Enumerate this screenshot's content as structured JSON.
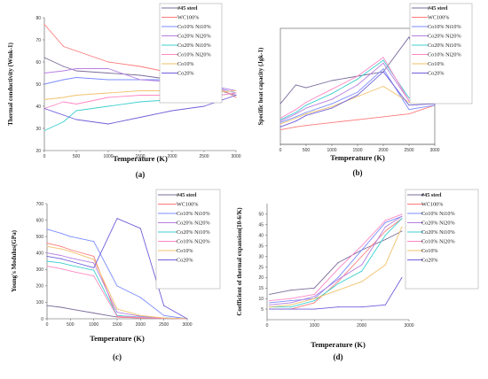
{
  "series_colors": [
    "#7a6b9a",
    "#ff7b7b",
    "#7b8cff",
    "#b77fe0",
    "#3fcfcf",
    "#ff88c4",
    "#f0c26e",
    "#6f5fd9",
    "#c88a78"
  ],
  "chart_data": [
    {
      "type": "line",
      "panel": "(a)",
      "xlabel": "Temperature (K)",
      "ylabel": "Thermal conductivity (Wmk-1)",
      "xlim": [
        0,
        3000
      ],
      "ylim": [
        20,
        80
      ],
      "xticks": [
        0,
        500,
        1000,
        1500,
        2000,
        2500,
        3000
      ],
      "yticks": [
        20,
        30,
        40,
        50,
        60,
        70,
        80
      ],
      "legend_position": "right",
      "x": [
        0,
        300,
        500,
        1000,
        1500,
        2000,
        2500,
        3000
      ],
      "series": [
        {
          "name": "#45 steel",
          "bold": true,
          "values": [
            62,
            58,
            56,
            55,
            54,
            52,
            49,
            45
          ]
        },
        {
          "name": "WC100%",
          "values": [
            77,
            67,
            65,
            60,
            58,
            55,
            52,
            44
          ]
        },
        {
          "name": "Co10% Ni10%",
          "values": [
            50,
            52,
            53,
            52,
            52,
            52,
            50,
            46
          ]
        },
        {
          "name": "Co20% Ni20%",
          "values": [
            55,
            56,
            57,
            57,
            52,
            51,
            50,
            47
          ]
        },
        {
          "name": "Co20% Ni10%",
          "values": [
            29,
            33,
            38,
            40,
            42,
            43,
            44,
            46
          ]
        },
        {
          "name": "Co10% Ni20%",
          "values": [
            39,
            42,
            41,
            44,
            45,
            45,
            44,
            46
          ]
        },
        {
          "name": "Co10%",
          "values": [
            43,
            44,
            45,
            46,
            47,
            47,
            46,
            47
          ]
        },
        {
          "name": "Co20%",
          "values": [
            39,
            36,
            34,
            32,
            35,
            38,
            40,
            45
          ]
        }
      ]
    },
    {
      "type": "line",
      "panel": "(b)",
      "xlabel": "Temperature (K)",
      "ylabel": "Specific heat capacity (Jgk-1)",
      "xlim": [
        0,
        3000
      ],
      "ylim": [
        0,
        0.8
      ],
      "xticks": [
        0,
        500,
        1000,
        1500,
        2000,
        2500,
        3000
      ],
      "yticks": [],
      "legend_position": "top-right",
      "x": [
        0,
        300,
        500,
        1000,
        1500,
        2000,
        2500,
        3000
      ],
      "series": [
        {
          "name": "#45 steel",
          "bold": true,
          "values": [
            0.28,
            0.41,
            0.39,
            0.44,
            0.47,
            0.5,
            0.74,
            0.28
          ]
        },
        {
          "name": "WC100%",
          "values": [
            0.1,
            0.12,
            0.13,
            0.15,
            0.17,
            0.19,
            0.21,
            0.27
          ]
        },
        {
          "name": "Co10% Ni10%",
          "values": [
            0.15,
            0.19,
            0.22,
            0.28,
            0.36,
            0.52,
            0.24,
            0.27
          ]
        },
        {
          "name": "Co20% Ni20%",
          "values": [
            0.16,
            0.21,
            0.25,
            0.31,
            0.41,
            0.56,
            0.3,
            0.3
          ]
        },
        {
          "name": "Co20% Ni10%",
          "values": [
            0.17,
            0.22,
            0.27,
            0.35,
            0.45,
            0.58,
            0.32,
            0.29
          ]
        },
        {
          "name": "Co10% Ni20%",
          "values": [
            0.18,
            0.24,
            0.29,
            0.38,
            0.47,
            0.6,
            0.3,
            0.29
          ]
        },
        {
          "name": "Co10%",
          "values": [
            0.14,
            0.18,
            0.21,
            0.26,
            0.33,
            0.4,
            0.29,
            0.3
          ]
        },
        {
          "name": "Co20%",
          "values": [
            0.12,
            0.16,
            0.2,
            0.25,
            0.34,
            0.5,
            0.27,
            0.28
          ]
        }
      ]
    },
    {
      "type": "line",
      "panel": "(c)",
      "xlabel": "Temperature (K)",
      "ylabel": "Young's Modulus(GPa)",
      "xlim": [
        0,
        3000
      ],
      "ylim": [
        0,
        700
      ],
      "xticks": [
        0,
        500,
        1000,
        1500,
        2000,
        2500,
        3000
      ],
      "yticks": [
        0,
        100,
        200,
        300,
        400,
        500,
        600,
        700
      ],
      "legend_position": "right",
      "x": [
        0,
        300,
        500,
        1000,
        1500,
        2000,
        2500,
        3000
      ],
      "series": [
        {
          "name": "#45 steel",
          "bold": true,
          "values": [
            80,
            70,
            60,
            35,
            10,
            5,
            3,
            0
          ]
        },
        {
          "name": "WC100%",
          "values": [
            460,
            440,
            420,
            380,
            10,
            5,
            3,
            0
          ]
        },
        {
          "name": "Co10% Ni10%",
          "values": [
            545,
            520,
            500,
            470,
            200,
            130,
            20,
            0
          ]
        },
        {
          "name": "Co20% Ni20%",
          "values": [
            400,
            385,
            370,
            340,
            40,
            15,
            5,
            0
          ]
        },
        {
          "name": "Co20% Ni10%",
          "values": [
            350,
            340,
            325,
            295,
            20,
            10,
            5,
            0
          ]
        },
        {
          "name": "Co10% Ni20%",
          "values": [
            320,
            305,
            290,
            260,
            15,
            8,
            4,
            0
          ]
        },
        {
          "name": "Co10%",
          "values": [
            440,
            425,
            410,
            360,
            60,
            20,
            5,
            0
          ]
        },
        {
          "name": "Co20%",
          "values": [
            380,
            365,
            350,
            310,
            610,
            550,
            80,
            0
          ]
        }
      ]
    },
    {
      "type": "line",
      "panel": "(d)",
      "xlabel": "Temperature (K)",
      "ylabel": "Coefficient of thermal expansion(10-6/K)",
      "xlim": [
        0,
        3000
      ],
      "ylim": [
        0,
        55
      ],
      "xticks": [
        0,
        1000,
        2000,
        3000
      ],
      "yticks": [
        5,
        10,
        15,
        20,
        25,
        30,
        35,
        40,
        45,
        50
      ],
      "legend_position": "right",
      "x": [
        50,
        500,
        1000,
        1500,
        2000,
        2500,
        2850
      ],
      "series": [
        {
          "name": "#45 steel",
          "bold": true,
          "values": [
            12,
            14,
            15,
            27,
            33,
            38,
            42
          ]
        },
        {
          "name": "WC100%",
          "values": [
            5,
            5,
            8,
            18,
            30,
            42,
            48
          ]
        },
        {
          "name": "Co10% Ni10%",
          "values": [
            8,
            9,
            10,
            20,
            33,
            46,
            49
          ]
        },
        {
          "name": "Co20% Ni20%",
          "values": [
            7,
            8,
            11,
            19,
            26,
            44,
            49
          ]
        },
        {
          "name": "Co20% Ni10%",
          "values": [
            6,
            6,
            9,
            17,
            23,
            40,
            48
          ]
        },
        {
          "name": "Co10% Ni20%",
          "values": [
            9,
            10,
            12,
            24,
            35,
            47,
            50
          ]
        },
        {
          "name": "Co10%",
          "values": [
            6,
            7,
            10,
            14,
            18,
            26,
            44
          ]
        },
        {
          "name": "Co20%",
          "values": [
            5,
            5,
            5,
            6,
            6,
            7,
            20
          ]
        }
      ]
    }
  ]
}
